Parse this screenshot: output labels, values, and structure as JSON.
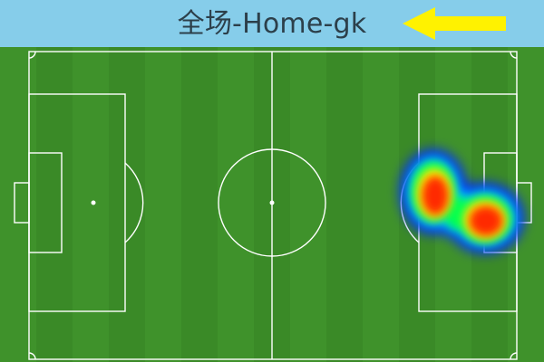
{
  "header": {
    "title": "全场-Home-gk",
    "background_color": "#86cdea",
    "arrow_icon": "arrow-left-icon",
    "arrow_color": "#fff200"
  },
  "pitch": {
    "grass_color": "#3f8f2a",
    "line_color": "#ffffff"
  },
  "heatmap": {
    "palette": [
      "#0000ff",
      "#00c8ff",
      "#00ff50",
      "#ffff00",
      "#ff2a00"
    ]
  }
}
